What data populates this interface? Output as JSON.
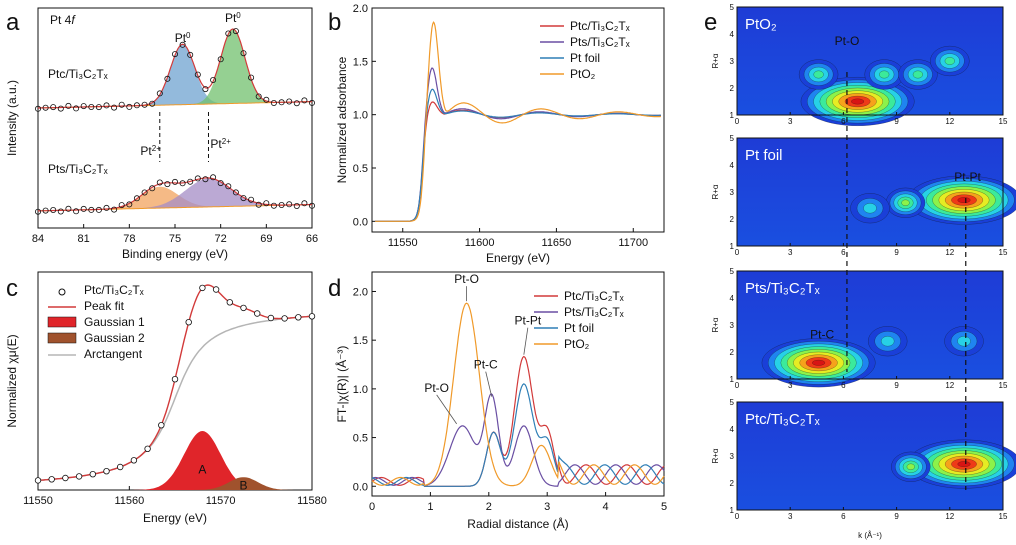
{
  "chart_data": [
    {
      "id": "a",
      "type": "line",
      "panel_label": "a",
      "title": "Pt 4f",
      "xlabel": "Binding energy (eV)",
      "ylabel": "Intensity (a.u.)",
      "xlim": [
        84,
        66
      ],
      "x_ticks": [
        "84",
        "81",
        "78",
        "75",
        "72",
        "69",
        "66"
      ],
      "series": [
        {
          "name": "Ptc/Ti3C2Tx",
          "label_text": "Ptc/Ti₃C₂Tₓ",
          "baseline": 0.62,
          "peaks": [
            {
              "center": 74.5,
              "height": 0.34,
              "width": 0.8,
              "color": "#6fa3d0"
            },
            {
              "center": 71.2,
              "height": 0.42,
              "width": 0.8,
              "color": "#72c06e"
            }
          ]
        },
        {
          "name": "Pts/Ti3C2Tx",
          "label_text": "Pts/Ti₃C₂Tₓ",
          "baseline": 0.04,
          "peaks": [
            {
              "center": 76.0,
              "height": 0.12,
              "width": 1.2,
              "color": "#f2a35e"
            },
            {
              "center": 72.8,
              "height": 0.16,
              "width": 1.5,
              "color": "#a48cc6"
            }
          ]
        }
      ],
      "annotations": [
        {
          "text": "Pt",
          "sup": "0",
          "x": 74.5
        },
        {
          "text": "Pt",
          "sup": "0",
          "x": 71.2
        },
        {
          "text": "Pt",
          "sup": "2+",
          "x": 76.6
        },
        {
          "text": "Pt",
          "sup": "2+",
          "x": 72.0
        }
      ]
    },
    {
      "id": "b",
      "type": "line",
      "panel_label": "b",
      "xlabel": "Energy (eV)",
      "ylabel": "Normalized adsorbance",
      "xlim": [
        11530,
        11720
      ],
      "ylim": [
        -0.1,
        2.0
      ],
      "x_ticks": [
        "11550",
        "11600",
        "11650",
        "11700"
      ],
      "y_ticks": [
        "0.0",
        "0.5",
        "1.0",
        "1.5",
        "2.0"
      ],
      "legend": [
        "Ptc/Ti₃C₂Tₓ",
        "Pts/Ti₃C₂Tₓ",
        "Pt foil",
        "PtO₂"
      ],
      "series": [
        {
          "name": "Ptc/Ti3C2Tx",
          "color": "#d23a3a",
          "edge": 11563,
          "peak": 1.13,
          "osc": 0.06
        },
        {
          "name": "Pts/Ti3C2Tx",
          "color": "#6a4fa3",
          "edge": 11563,
          "peak": 1.45,
          "osc": 0.08
        },
        {
          "name": "Pt foil",
          "color": "#2f7fb6",
          "edge": 11563,
          "peak": 1.25,
          "osc": 0.05
        },
        {
          "name": "PtO2",
          "color": "#f09a2a",
          "edge": 11564,
          "peak": 1.88,
          "osc": 0.16
        }
      ]
    },
    {
      "id": "c",
      "type": "line",
      "panel_label": "c",
      "xlabel": "Energy (eV)",
      "ylabel": "Normalized χμ(E)",
      "xlim": [
        11550,
        11580
      ],
      "x_ticks": [
        "11550",
        "11560",
        "11570",
        "11580"
      ],
      "legend": [
        "Ptc/Ti₃C₂Tₓ",
        "Peak fit",
        "Gaussian 1",
        "Gaussian 2",
        "Arctangent"
      ],
      "gaussians": [
        {
          "name": "A",
          "center": 11568,
          "height": 0.46,
          "width": 2.0,
          "color": "#e0252a"
        },
        {
          "name": "B",
          "center": 11572.5,
          "height": 0.1,
          "width": 1.6,
          "color": "#a0522d"
        }
      ],
      "arctan": {
        "center": 11565,
        "height": 1.43,
        "width": 2.5
      },
      "data_points_x": [
        11550,
        11551.5,
        11553,
        11554.5,
        11556,
        11557.5,
        11559,
        11560.5,
        11562,
        11563.5,
        11565,
        11566.5,
        11568,
        11569.5,
        11571,
        11572.5,
        11574,
        11575.5,
        11577,
        11578.5,
        11580
      ]
    },
    {
      "id": "d",
      "type": "line",
      "panel_label": "d",
      "xlabel": "Radial distance (Å)",
      "ylabel": "FT-|χ(R)| (Å⁻³)",
      "xlim": [
        0,
        5
      ],
      "ylim": [
        -0.1,
        2.2
      ],
      "x_ticks": [
        "0",
        "1",
        "2",
        "3",
        "4",
        "5"
      ],
      "y_ticks": [
        "0.0",
        "0.5",
        "1.0",
        "1.5",
        "2.0"
      ],
      "legend": [
        "Ptc/Ti₃C₂Tₓ",
        "Pts/Ti₃C₂Tₓ",
        "Pt foil",
        "PtO₂"
      ],
      "series": [
        {
          "name": "Ptc/Ti3C2Tx",
          "color": "#d23a3a",
          "peaks": [
            [
              2.08,
              0.55,
              0.12
            ],
            [
              2.6,
              1.33,
              0.16
            ],
            [
              3.0,
              0.55,
              0.12
            ]
          ]
        },
        {
          "name": "Pts/Ti3C2Tx",
          "color": "#6a4fa3",
          "peaks": [
            [
              1.55,
              0.62,
              0.22
            ],
            [
              2.05,
              0.9,
              0.12
            ],
            [
              2.6,
              0.62,
              0.16
            ]
          ]
        },
        {
          "name": "Pt foil",
          "color": "#2f7fb6",
          "peaks": [
            [
              2.08,
              0.55,
              0.12
            ],
            [
              2.6,
              1.05,
              0.16
            ],
            [
              3.0,
              0.45,
              0.12
            ]
          ]
        },
        {
          "name": "PtO2",
          "color": "#f09a2a",
          "peaks": [
            [
              1.62,
              1.88,
              0.22
            ],
            [
              2.9,
              0.42,
              0.16
            ]
          ]
        }
      ],
      "annotations": [
        {
          "text": "Pt-O",
          "x": 1.62,
          "y": 1.88
        },
        {
          "text": "Pt-O",
          "x": 1.45,
          "y": 0.62
        },
        {
          "text": "Pt-C",
          "x": 2.05,
          "y": 0.9
        },
        {
          "text": "Pt-Pt",
          "x": 2.6,
          "y": 1.33
        }
      ]
    },
    {
      "id": "e",
      "type": "heatmap",
      "panel_label": "e",
      "xlabel": "k (Å⁻¹)",
      "ylabel": "R+α",
      "xlim": [
        0,
        15
      ],
      "ylim": [
        1,
        5
      ],
      "x_ticks": [
        "0",
        "3",
        "6",
        "9",
        "12",
        "15"
      ],
      "y_ticks": [
        "1",
        "2",
        "3",
        "4",
        "5"
      ],
      "maps": [
        {
          "title": "PtO₂",
          "blobs": [
            [
              6.8,
              1.5,
              1.0
            ],
            [
              4.6,
              2.5,
              0.45
            ],
            [
              8.3,
              2.5,
              0.4
            ],
            [
              10.2,
              2.5,
              0.4
            ],
            [
              12.0,
              3.0,
              0.4
            ]
          ],
          "annotation": {
            "text": "Pt-O",
            "k": 6.2,
            "r": 3.6
          }
        },
        {
          "title": "Pt foil",
          "blobs": [
            [
              12.8,
              2.7,
              1.0
            ],
            [
              9.5,
              2.6,
              0.6
            ],
            [
              7.5,
              2.4,
              0.3
            ]
          ],
          "annotation": {
            "text": "Pt-Pt",
            "k": 13.0,
            "r": 3.4
          }
        },
        {
          "title": "Pts/Ti₃C₂Tₓ",
          "blobs": [
            [
              4.6,
              1.6,
              1.0
            ],
            [
              8.5,
              2.4,
              0.35
            ],
            [
              12.8,
              2.4,
              0.3
            ]
          ],
          "annotation": {
            "text": "Pt-C",
            "k": 4.8,
            "r": 2.5
          }
        },
        {
          "title": "Ptc/Ti₃C₂Tₓ",
          "blobs": [
            [
              12.8,
              2.7,
              1.0
            ],
            [
              9.8,
              2.6,
              0.6
            ]
          ],
          "annotation": null
        }
      ],
      "dashed_k": [
        6.2,
        12.9
      ]
    }
  ]
}
